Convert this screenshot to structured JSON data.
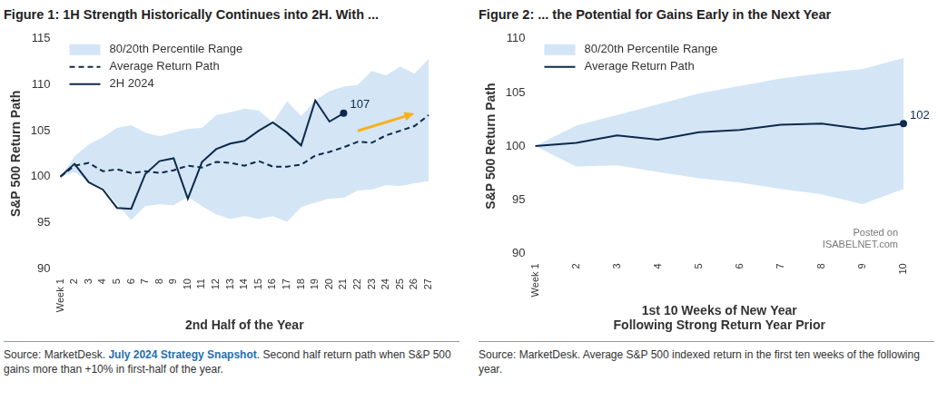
{
  "chart_data": [
    {
      "type": "line",
      "title": "Figure 1: 1H Strength Historically Continues into 2H. With ...",
      "x_label": "2nd Half of the Year",
      "y_label": "S&P 500 Return Path",
      "categories": [
        "Week 1",
        "2",
        "3",
        "4",
        "5",
        "6",
        "7",
        "8",
        "9",
        "10",
        "11",
        "12",
        "13",
        "14",
        "15",
        "16",
        "17",
        "18",
        "19",
        "20",
        "21",
        "22",
        "23",
        "24",
        "25",
        "26",
        "27"
      ],
      "series": [
        {
          "name": "80/20th Percentile Range",
          "type": "band",
          "color": "#d4e5f6",
          "lower": [
            100,
            100.5,
            99.5,
            98.8,
            97.0,
            95.3,
            96.8,
            97.0,
            96.9,
            97.8,
            96.8,
            95.9,
            95.4,
            95.7,
            95.4,
            95.7,
            95.1,
            96.7,
            97.2,
            97.6,
            97.7,
            98.5,
            98.6,
            99.1,
            99.0,
            99.3,
            99.5
          ],
          "upper": [
            100,
            102.2,
            103.5,
            104.3,
            105.3,
            105.6,
            104.8,
            104.4,
            104.8,
            105.2,
            105.3,
            106.7,
            107.0,
            107.4,
            107.2,
            105.9,
            108.2,
            106.6,
            108.3,
            109.3,
            109.8,
            110.0,
            111.5,
            111.0,
            112.0,
            111.2,
            112.8
          ]
        },
        {
          "name": "Average Return Path",
          "color": "#0d2a4a",
          "line_style": "dashed",
          "values": [
            100,
            101.2,
            101.5,
            100.6,
            100.8,
            100.4,
            100.6,
            100.4,
            100.7,
            101.2,
            101.0,
            101.6,
            101.5,
            101.2,
            101.7,
            101.1,
            101.1,
            101.3,
            102.3,
            102.7,
            103.2,
            103.8,
            103.7,
            104.5,
            105.0,
            105.5,
            106.7
          ]
        },
        {
          "name": "2H 2024",
          "color": "#0d2a4a",
          "line_style": "solid",
          "data_labels": true,
          "values": [
            100,
            101.4,
            99.4,
            98.6,
            96.6,
            96.5,
            100.3,
            101.7,
            102.0,
            97.6,
            101.6,
            103.0,
            103.6,
            103.9,
            105.0,
            105.9,
            104.8,
            103.4,
            108.3,
            106.0,
            106.9,
            null,
            null,
            null,
            null,
            null,
            null
          ],
          "value_labels": [
            null,
            null,
            null,
            null,
            null,
            null,
            null,
            null,
            null,
            null,
            null,
            null,
            null,
            null,
            null,
            null,
            null,
            null,
            null,
            null,
            "107",
            null,
            null,
            null,
            null,
            null,
            null
          ]
        }
      ],
      "ylim": [
        90,
        115
      ],
      "yticks": [
        90,
        95,
        100,
        105,
        110,
        115
      ],
      "grid": false,
      "legend": "top-left",
      "source": "Source: MarketDesk. July 2024 Strategy Snapshot. Second half return path when S&P 500 gains more than +10% in first-half of the year.",
      "source_highlight": "July 2024 Strategy Snapshot"
    },
    {
      "type": "line",
      "title": "Figure 2: ... the Potential for Gains Early in the Next Year",
      "x_label": [
        "1st 10 Weeks of New Year",
        "Following Strong Return Year Prior"
      ],
      "y_label": "S&P 500 Return Path",
      "categories": [
        "Week 1",
        "2",
        "3",
        "4",
        "5",
        "6",
        "7",
        "8",
        "9",
        "10"
      ],
      "series": [
        {
          "name": "80/20th Percentile Range",
          "type": "band",
          "color": "#d4e5f6",
          "lower": [
            100,
            98.1,
            98.2,
            97.6,
            97.0,
            96.6,
            96.0,
            95.5,
            94.6,
            96.0
          ],
          "upper": [
            100,
            101.9,
            102.9,
            103.9,
            104.9,
            105.6,
            106.3,
            106.8,
            107.2,
            108.2
          ]
        },
        {
          "name": "Average Return Path",
          "color": "#0d2a4a",
          "line_style": "solid",
          "data_labels": true,
          "values": [
            100,
            100.3,
            101.0,
            100.6,
            101.3,
            101.5,
            102.0,
            102.1,
            101.6,
            102.1
          ],
          "value_labels": [
            null,
            null,
            null,
            null,
            null,
            null,
            null,
            null,
            null,
            "102"
          ]
        }
      ],
      "ylim": [
        90,
        110
      ],
      "yticks": [
        90,
        95,
        100,
        105,
        110
      ],
      "grid": false,
      "legend": "top-left",
      "watermark": [
        "Posted on",
        "ISABELNET.com"
      ],
      "source": "Source: MarketDesk. Average S&P 500 indexed return in the first ten weeks of the following year."
    }
  ]
}
